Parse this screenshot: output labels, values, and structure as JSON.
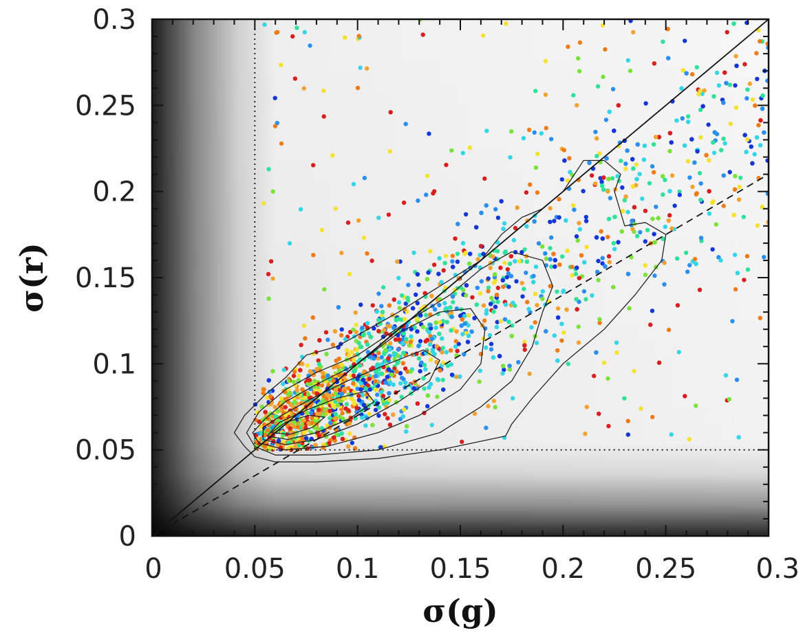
{
  "chart_data": {
    "type": "scatter",
    "title": "",
    "xlabel": "σ(g)",
    "ylabel": "σ(r)",
    "xlim": [
      0,
      0.3
    ],
    "ylim": [
      0,
      0.3
    ],
    "x_ticks": [
      0,
      0.05,
      0.1,
      0.15,
      0.2,
      0.25,
      0.3
    ],
    "x_tick_labels": [
      "0",
      "0.05",
      "0.1",
      "0.15",
      "0.2",
      "0.25",
      "0.3"
    ],
    "y_ticks": [
      0,
      0.05,
      0.1,
      0.15,
      0.2,
      0.25,
      0.3
    ],
    "y_tick_labels": [
      "0",
      "0.05",
      "0.1",
      "0.15",
      "0.2",
      "0.25",
      "0.3"
    ],
    "grid": false,
    "legend": "none",
    "background": "grayscale gradient, darkest near the origin",
    "point_colors": [
      "#d81e1e",
      "#f07c18",
      "#f2a230",
      "#f5e130",
      "#7ae23a",
      "#2fe29a",
      "#33d6e6",
      "#2c8ef0",
      "#1436d8"
    ],
    "reference_lines": [
      {
        "style": "solid",
        "points": [
          [
            0,
            0
          ],
          [
            0.3,
            0.3
          ]
        ]
      },
      {
        "style": "dashed",
        "points": [
          [
            0,
            0
          ],
          [
            0.3,
            0.21
          ]
        ]
      },
      {
        "style": "dotted",
        "points": [
          [
            0.05,
            0.3
          ],
          [
            0.05,
            0.05
          ],
          [
            0.3,
            0.05
          ]
        ]
      }
    ],
    "contours": [
      {
        "level": 1,
        "points": [
          [
            0.045,
            0.052
          ],
          [
            0.05,
            0.046
          ],
          [
            0.06,
            0.043
          ],
          [
            0.08,
            0.043
          ],
          [
            0.11,
            0.045
          ],
          [
            0.14,
            0.05
          ],
          [
            0.16,
            0.055
          ],
          [
            0.172,
            0.058
          ],
          [
            0.175,
            0.065
          ],
          [
            0.185,
            0.08
          ],
          [
            0.2,
            0.1
          ],
          [
            0.22,
            0.12
          ],
          [
            0.235,
            0.14
          ],
          [
            0.248,
            0.16
          ],
          [
            0.25,
            0.175
          ],
          [
            0.24,
            0.182
          ],
          [
            0.23,
            0.18
          ],
          [
            0.225,
            0.2
          ],
          [
            0.228,
            0.21
          ],
          [
            0.22,
            0.218
          ],
          [
            0.21,
            0.218
          ],
          [
            0.2,
            0.2
          ],
          [
            0.19,
            0.19
          ],
          [
            0.18,
            0.185
          ],
          [
            0.17,
            0.175
          ],
          [
            0.16,
            0.16
          ],
          [
            0.14,
            0.145
          ],
          [
            0.12,
            0.13
          ],
          [
            0.09,
            0.11
          ],
          [
            0.075,
            0.105
          ],
          [
            0.065,
            0.092
          ],
          [
            0.055,
            0.082
          ],
          [
            0.045,
            0.07
          ],
          [
            0.04,
            0.06
          ]
        ]
      },
      {
        "level": 2,
        "points": [
          [
            0.05,
            0.052
          ],
          [
            0.06,
            0.047
          ],
          [
            0.08,
            0.047
          ],
          [
            0.11,
            0.05
          ],
          [
            0.14,
            0.06
          ],
          [
            0.16,
            0.075
          ],
          [
            0.175,
            0.09
          ],
          [
            0.185,
            0.11
          ],
          [
            0.19,
            0.13
          ],
          [
            0.195,
            0.145
          ],
          [
            0.19,
            0.16
          ],
          [
            0.175,
            0.165
          ],
          [
            0.16,
            0.155
          ],
          [
            0.145,
            0.14
          ],
          [
            0.125,
            0.125
          ],
          [
            0.1,
            0.105
          ],
          [
            0.08,
            0.095
          ],
          [
            0.065,
            0.085
          ],
          [
            0.052,
            0.072
          ],
          [
            0.046,
            0.06
          ]
        ]
      },
      {
        "level": 3,
        "points": [
          [
            0.052,
            0.054
          ],
          [
            0.065,
            0.05
          ],
          [
            0.085,
            0.052
          ],
          [
            0.11,
            0.06
          ],
          [
            0.13,
            0.07
          ],
          [
            0.15,
            0.085
          ],
          [
            0.16,
            0.1
          ],
          [
            0.162,
            0.12
          ],
          [
            0.155,
            0.132
          ],
          [
            0.14,
            0.13
          ],
          [
            0.12,
            0.118
          ],
          [
            0.1,
            0.1
          ],
          [
            0.08,
            0.088
          ],
          [
            0.065,
            0.078
          ],
          [
            0.055,
            0.068
          ],
          [
            0.049,
            0.06
          ]
        ]
      },
      {
        "level": 4,
        "points": [
          [
            0.054,
            0.056
          ],
          [
            0.065,
            0.053
          ],
          [
            0.08,
            0.056
          ],
          [
            0.1,
            0.065
          ],
          [
            0.12,
            0.078
          ],
          [
            0.135,
            0.09
          ],
          [
            0.14,
            0.102
          ],
          [
            0.132,
            0.108
          ],
          [
            0.115,
            0.1
          ],
          [
            0.095,
            0.09
          ],
          [
            0.078,
            0.08
          ],
          [
            0.063,
            0.07
          ],
          [
            0.054,
            0.063
          ]
        ]
      },
      {
        "level": 5,
        "points": [
          [
            0.056,
            0.058
          ],
          [
            0.066,
            0.056
          ],
          [
            0.08,
            0.06
          ],
          [
            0.096,
            0.068
          ],
          [
            0.108,
            0.078
          ],
          [
            0.104,
            0.084
          ],
          [
            0.09,
            0.08
          ],
          [
            0.075,
            0.073
          ],
          [
            0.062,
            0.066
          ]
        ]
      },
      {
        "level": 6,
        "points": [
          [
            0.058,
            0.06
          ],
          [
            0.067,
            0.059
          ],
          [
            0.078,
            0.063
          ],
          [
            0.084,
            0.069
          ],
          [
            0.076,
            0.07
          ],
          [
            0.065,
            0.066
          ]
        ]
      }
    ]
  }
}
